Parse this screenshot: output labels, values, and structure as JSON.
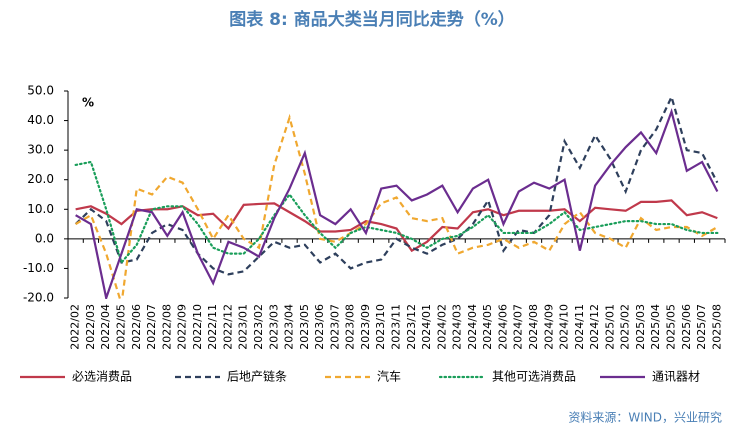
{
  "chart_data": {
    "type": "line",
    "title": "图表 8:  商品大类当月同比走势（%）",
    "unit": "%",
    "source": "资料来源：WIND，兴业研究",
    "categories": [
      "2022/02",
      "2022/03",
      "2022/04",
      "2022/05",
      "2022/06",
      "2022/07",
      "2022/08",
      "2022/09",
      "2022/10",
      "2022/11",
      "2022/12",
      "2023/01",
      "2023/02",
      "2023/03",
      "2023/04",
      "2023/05",
      "2023/06",
      "2023/07",
      "2023/08",
      "2023/09",
      "2023/10",
      "2023/11",
      "2023/12",
      "2024/01",
      "2024/02",
      "2024/03",
      "2024/04",
      "2024/05",
      "2024/06",
      "2024/07",
      "2024/08",
      "2024/09",
      "2024/10",
      "2024/11",
      "2024/12",
      "2025/01",
      "2025/02",
      "2025/03",
      "2025/04",
      "2025/05",
      "2025/06",
      "2025/07",
      "2025/08"
    ],
    "series": [
      {
        "name": "必选消费品",
        "color": "#c0394b",
        "style": "solid",
        "values": [
          10,
          11,
          8.5,
          5,
          9.5,
          10,
          10,
          11,
          8,
          8.5,
          3.5,
          11.5,
          11.8,
          12,
          9,
          6,
          2.5,
          2.5,
          3,
          6,
          5,
          3.5,
          -4,
          -1,
          4,
          3.5,
          9,
          10,
          8,
          9.5,
          9.5,
          9.5,
          10,
          6,
          10.5,
          10,
          9.5,
          12.5,
          12.5,
          13,
          8,
          9,
          7
        ]
      },
      {
        "name": "后地产链条",
        "color": "#2e3f5c",
        "style": "dashed",
        "values": [
          5,
          10,
          6,
          -8,
          -7,
          2,
          5,
          3,
          -5,
          -10,
          -12,
          -11,
          -6,
          -1,
          -3,
          -2,
          -8,
          -5,
          -10,
          -8,
          -7,
          0,
          -3,
          -5,
          -2,
          0,
          5,
          13,
          -4,
          3,
          2,
          8,
          33,
          24,
          35,
          27,
          16,
          30,
          37,
          48,
          30,
          29,
          19
        ]
      },
      {
        "name": "汽车",
        "color": "#f0a830",
        "style": "dashed",
        "values": [
          5,
          8,
          -5,
          -22,
          17,
          15,
          21,
          19,
          10,
          0,
          8,
          0,
          -3,
          25,
          41,
          22,
          0,
          -1,
          2,
          5,
          12,
          14,
          7,
          6,
          7,
          -5,
          -3,
          -2,
          0,
          -3,
          -1,
          -4,
          5,
          9,
          2,
          0,
          -3,
          7,
          3,
          4,
          4,
          1,
          4
        ]
      },
      {
        "name": "其他可选消费品",
        "color": "#1a9e5a",
        "style": "dotted",
        "values": [
          25,
          26,
          10,
          -8,
          -2,
          10,
          11,
          11,
          5,
          -3,
          -5,
          -5,
          0,
          8,
          15,
          8,
          2,
          -3,
          2,
          4,
          3,
          2,
          0,
          -3,
          0,
          1,
          4,
          8,
          2,
          2,
          2,
          5,
          9,
          3,
          4,
          5,
          6,
          6,
          5,
          5,
          3,
          2,
          2
        ]
      },
      {
        "name": "通讯器材",
        "color": "#6b2d8f",
        "style": "solid",
        "values": [
          8,
          5,
          -20,
          -5,
          10,
          9,
          1,
          9,
          -5,
          -15,
          -1,
          -3,
          -6,
          7,
          17,
          29,
          8,
          5,
          10,
          2,
          17,
          18,
          13,
          15,
          18,
          9,
          17,
          20,
          5,
          16,
          19,
          17,
          20,
          -4,
          18,
          25,
          31,
          36,
          29,
          43,
          23,
          26,
          16
        ]
      }
    ],
    "ylim": [
      -20,
      50
    ],
    "yticks": [
      {
        "value": -20,
        "label": "-20.0"
      },
      {
        "value": -10,
        "label": "-10.0"
      },
      {
        "value": 0,
        "label": "0.0"
      },
      {
        "value": 10,
        "label": "10.0"
      },
      {
        "value": 20,
        "label": "20.0"
      },
      {
        "value": 30,
        "label": "30.0"
      },
      {
        "value": 40,
        "label": "40.0"
      },
      {
        "value": 50,
        "label": "50.0"
      }
    ]
  }
}
